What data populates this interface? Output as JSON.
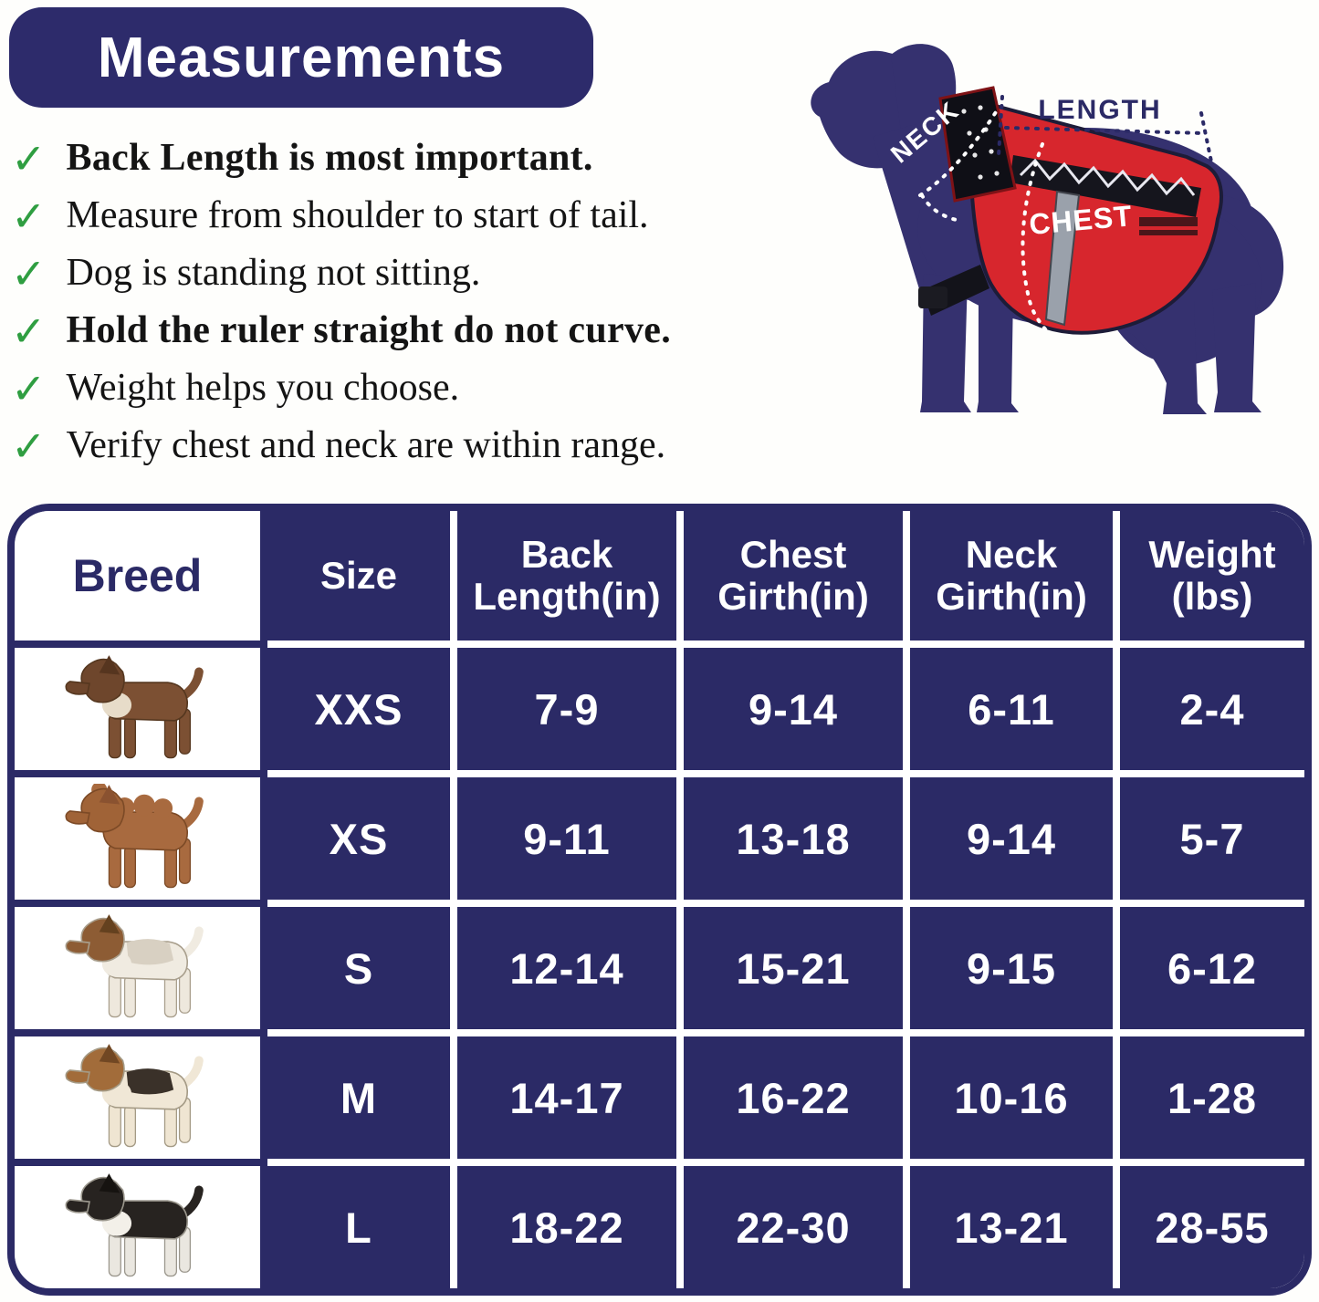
{
  "title": "Measurements",
  "check_glyph": "✓",
  "checklist": [
    {
      "text": "Back Length is most important.",
      "bold": true
    },
    {
      "text": "Measure from shoulder to start of tail.",
      "bold": false
    },
    {
      "text": "Dog is standing not sitting.",
      "bold": false
    },
    {
      "text": "Hold the ruler straight do not curve.",
      "bold": true
    },
    {
      "text": "Weight helps you choose.",
      "bold": false
    },
    {
      "text": "Verify chest and neck are within range.",
      "bold": false
    }
  ],
  "diagram": {
    "length_label": "LENGTH",
    "neck_label": "NECK",
    "chest_label": "CHEST"
  },
  "table": {
    "headers": [
      "Breed",
      "Size",
      "Back Length(in)",
      "Chest Girth(in)",
      "Neck Girth(in)",
      "Weight (lbs)"
    ],
    "rows": [
      {
        "breed_icon": "chihuahua-photo",
        "size": "XXS",
        "back_length": "7-9",
        "chest_girth": "9-14",
        "neck_girth": "6-11",
        "weight": "2-4",
        "palette": {
          "body": "#7c5033",
          "head": "#6e462c",
          "ear": "#56351f",
          "chest": "#e7dcc9",
          "saddle": "transparent",
          "legs": "#7c5033",
          "outline": "#55371f",
          "fluff": "0"
        }
      },
      {
        "breed_icon": "poodle-photo",
        "size": "XS",
        "back_length": "9-11",
        "chest_girth": "13-18",
        "neck_girth": "9-14",
        "weight": "5-7",
        "palette": {
          "body": "#a86a3f",
          "head": "#a06337",
          "ear": "#8a5230",
          "chest": "transparent",
          "saddle": "transparent",
          "legs": "#a86a3f",
          "outline": "#7c4a26",
          "fluff": "1"
        }
      },
      {
        "breed_icon": "jack-russell-photo",
        "size": "S",
        "back_length": "12-14",
        "chest_girth": "15-21",
        "neck_girth": "9-15",
        "weight": "6-12",
        "palette": {
          "body": "#f0ebe1",
          "head": "#8d5c34",
          "ear": "#64411f",
          "chest": "#f0ebe1",
          "saddle": "#d8d0c2",
          "legs": "#eee8dd",
          "outline": "#a99f8d",
          "fluff": "0"
        }
      },
      {
        "breed_icon": "beagle-photo",
        "size": "M",
        "back_length": "14-17",
        "chest_girth": "16-22",
        "neck_girth": "10-16",
        "weight": "1-28",
        "palette": {
          "body": "#f0e7d6",
          "head": "#a26c3a",
          "ear": "#714723",
          "chest": "#f0e7d6",
          "saddle": "#3a3129",
          "legs": "#efe5d2",
          "outline": "#a49a85",
          "fluff": "0"
        }
      },
      {
        "breed_icon": "border-collie-photo",
        "size": "L",
        "back_length": "18-22",
        "chest_girth": "22-30",
        "neck_girth": "13-21",
        "weight": "28-55",
        "palette": {
          "body": "#272320",
          "head": "#272320",
          "ear": "#161310",
          "chest": "#f3f0e9",
          "saddle": "transparent",
          "legs": "#eae7e0",
          "outline": "#9b978d",
          "fluff": "0"
        }
      }
    ]
  },
  "colors": {
    "table_navy": "#2b2a66",
    "title_navy": "#2d2b6b",
    "dog_navy": "#35316f",
    "vest_red": "#d7262d",
    "check_green": "#2f9e41"
  }
}
